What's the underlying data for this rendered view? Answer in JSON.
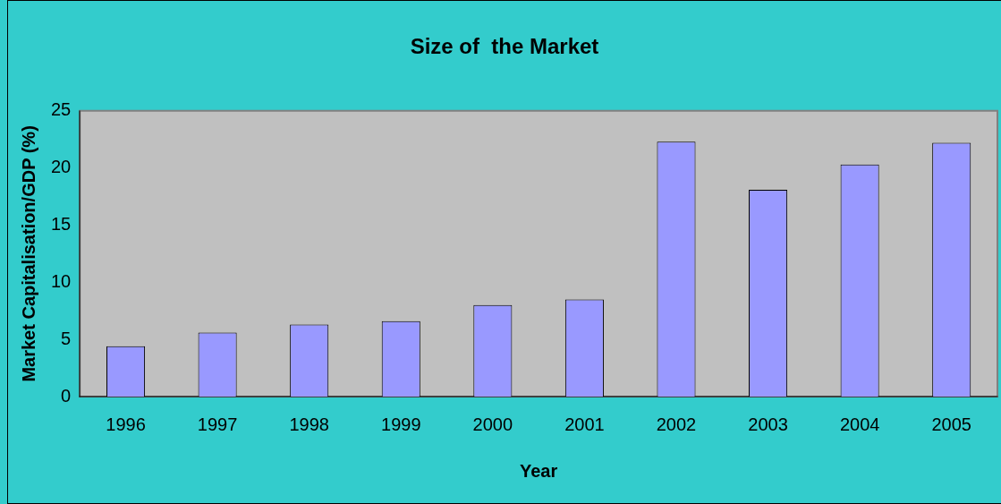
{
  "chart_data": {
    "type": "bar",
    "title": "Size of  the Market",
    "xlabel": "Year",
    "ylabel": "Market Capitalisation/GDP (%)",
    "categories": [
      "1996",
      "1997",
      "1998",
      "1999",
      "2000",
      "2001",
      "2002",
      "2003",
      "2004",
      "2005"
    ],
    "values": [
      4.4,
      5.6,
      6.3,
      6.6,
      8.0,
      8.5,
      22.3,
      18.1,
      20.3,
      22.2
    ],
    "color": "#9999ff",
    "ylim": [
      0,
      25
    ],
    "yticks": [
      0,
      5,
      10,
      15,
      20,
      25
    ],
    "grid": false,
    "legend": false
  }
}
